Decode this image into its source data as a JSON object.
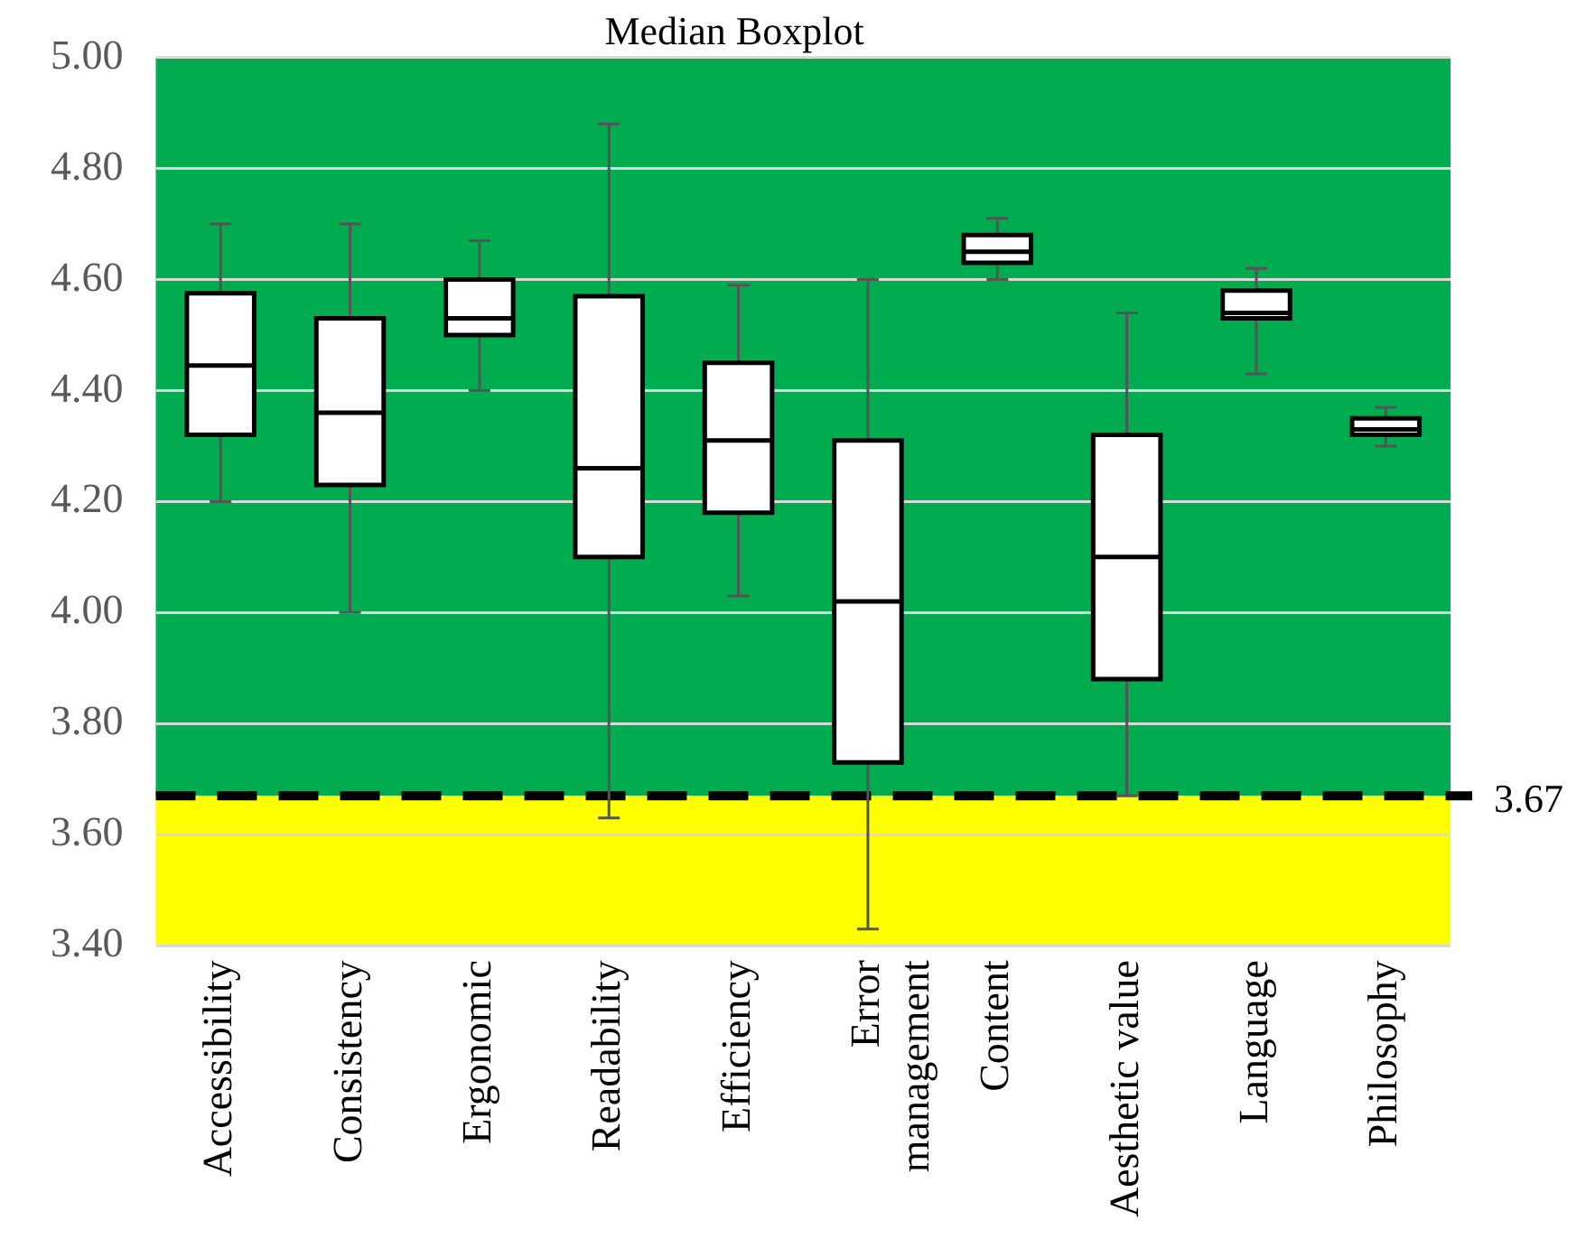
{
  "chart_data": {
    "type": "box",
    "title": "Median Boxplot",
    "categories": [
      "Accessibility",
      "Consistency",
      "Ergonomic",
      "Readability",
      "Efficiency",
      "Error management",
      "Content",
      "Aesthetic value",
      "Language",
      "Philosophy"
    ],
    "boxes": [
      {
        "low": 4.2,
        "q1": 4.32,
        "median": 4.445,
        "q3": 4.575,
        "high": 4.7
      },
      {
        "low": 4.0,
        "q1": 4.23,
        "median": 4.36,
        "q3": 4.53,
        "high": 4.7
      },
      {
        "low": 4.4,
        "q1": 4.5,
        "median": 4.53,
        "q3": 4.6,
        "high": 4.67
      },
      {
        "low": 3.63,
        "q1": 4.1,
        "median": 4.26,
        "q3": 4.57,
        "high": 4.88
      },
      {
        "low": 4.03,
        "q1": 4.18,
        "median": 4.31,
        "q3": 4.45,
        "high": 4.59
      },
      {
        "low": 3.43,
        "q1": 3.73,
        "median": 4.02,
        "q3": 4.31,
        "high": 4.6
      },
      {
        "low": 4.6,
        "q1": 4.63,
        "median": 4.65,
        "q3": 4.68,
        "high": 4.71
      },
      {
        "low": 3.67,
        "q1": 3.88,
        "median": 4.1,
        "q3": 4.32,
        "high": 4.54
      },
      {
        "low": 4.43,
        "q1": 4.53,
        "median": 4.54,
        "q3": 4.58,
        "high": 4.62
      },
      {
        "low": 4.3,
        "q1": 4.32,
        "median": 4.33,
        "q3": 4.35,
        "high": 4.37
      }
    ],
    "color": "#000000",
    "ylim": [
      3.4,
      5.0
    ],
    "yticks": [
      {
        "value": 3.4,
        "label": "3.40"
      },
      {
        "value": 3.6,
        "label": "3.60"
      },
      {
        "value": 3.8,
        "label": "3.80"
      },
      {
        "value": 4.0,
        "label": "4.00"
      },
      {
        "value": 4.2,
        "label": "4.20"
      },
      {
        "value": 4.4,
        "label": "4.40"
      },
      {
        "value": 4.6,
        "label": "4.60"
      },
      {
        "value": 4.8,
        "label": "4.80"
      },
      {
        "value": 5.0,
        "label": "5.00"
      }
    ],
    "grid": "y",
    "legend": false,
    "bands": [
      {
        "axis": "y",
        "from": 3.67,
        "to": 5.0,
        "color": "#00ac4f"
      },
      {
        "axis": "y",
        "from": 3.4,
        "to": 3.67,
        "color": "#ffff00"
      }
    ],
    "ref_lines": [
      {
        "axis": "y",
        "value": 3.67,
        "label": "3.67",
        "color": "#000000",
        "line_style": "dashed"
      }
    ]
  }
}
